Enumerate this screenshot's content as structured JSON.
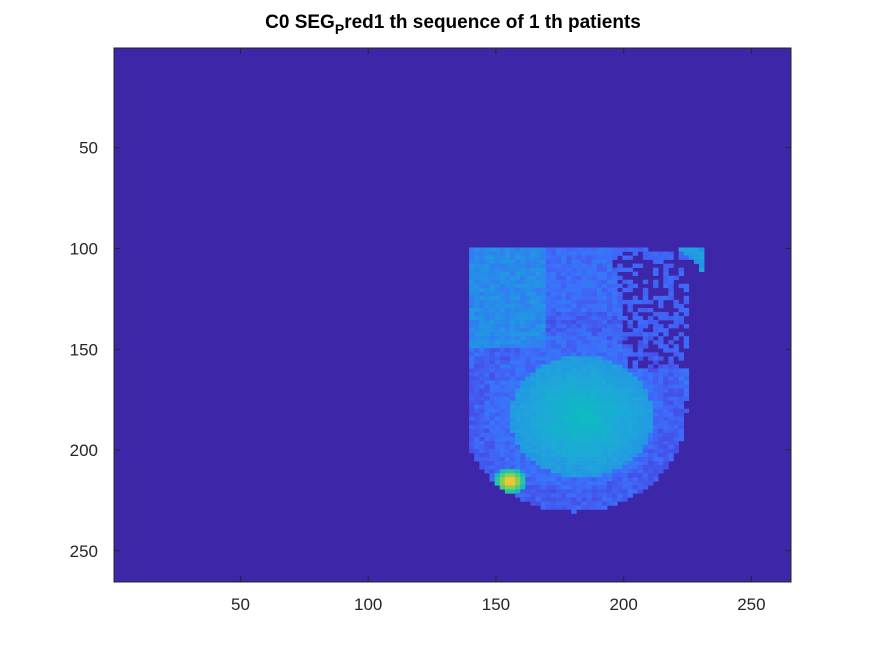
{
  "chart_data": {
    "type": "heatmap",
    "title_parts": {
      "pre": "C0 SEG",
      "sub": "P",
      "post": "red1 th sequence of 1 th patients"
    },
    "xlim": [
      0.5,
      265.5
    ],
    "ylim": [
      0.5,
      265.5
    ],
    "y_direction": "reversed",
    "x_ticks": [
      50,
      100,
      150,
      200,
      250
    ],
    "y_ticks": [
      50,
      100,
      150,
      200,
      250
    ],
    "x_tick_labels": [
      "50",
      "100",
      "150",
      "200",
      "250"
    ],
    "y_tick_labels": [
      "50",
      "100",
      "150",
      "200",
      "250"
    ],
    "colormap": "parula",
    "background_color": "#3e26a8",
    "data_region": {
      "x_range": [
        140,
        230
      ],
      "y_range": [
        100,
        230
      ],
      "description_values": {
        "outer_ellipse_center": [
          180,
          180
        ],
        "inner_ellipse_center": [
          183,
          183
        ],
        "bright_spot": [
          155,
          215
        ],
        "triangle_corner": [
          230,
          100
        ]
      }
    }
  }
}
